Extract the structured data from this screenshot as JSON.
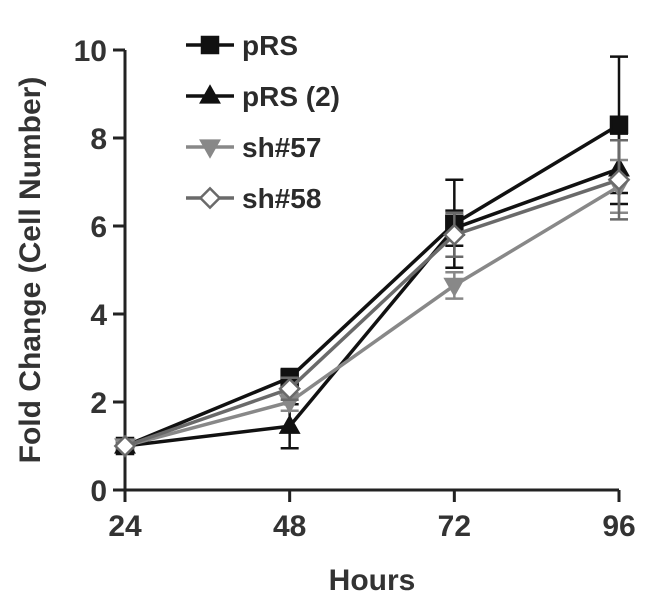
{
  "chart_data": {
    "type": "line",
    "xlabel": "Hours",
    "ylabel": "Fold Change (Cell Number)",
    "x": [
      24,
      48,
      72,
      96
    ],
    "xticks": [
      24,
      48,
      72,
      96
    ],
    "yticks": [
      0,
      2,
      4,
      6,
      8,
      10
    ],
    "xlim": [
      24,
      96
    ],
    "ylim": [
      0,
      10
    ],
    "grid": false,
    "legend_position": "top-left",
    "series": [
      {
        "name": "pRS",
        "marker": "square",
        "color": "#111111",
        "values": [
          1.0,
          2.55,
          6.05,
          8.3
        ],
        "errors": [
          0.05,
          0.2,
          1.0,
          1.55
        ]
      },
      {
        "name": "pRS (2)",
        "marker": "triangle-up",
        "color": "#111111",
        "values": [
          1.0,
          1.45,
          5.95,
          7.3
        ],
        "errors": [
          0.05,
          0.5,
          0.4,
          0.8
        ]
      },
      {
        "name": "sh#57",
        "marker": "triangle-down",
        "color": "#888888",
        "values": [
          1.0,
          2.0,
          4.65,
          6.9
        ],
        "errors": [
          0.05,
          0.2,
          0.3,
          0.6
        ]
      },
      {
        "name": "sh#58",
        "marker": "diamond",
        "color": "#6a6a6a",
        "values": [
          1.0,
          2.3,
          5.8,
          7.05
        ],
        "errors": [
          0.05,
          0.25,
          0.5,
          0.9
        ]
      }
    ]
  }
}
